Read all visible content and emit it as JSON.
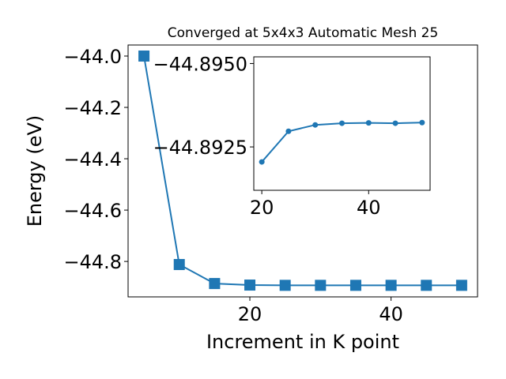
{
  "chart_data": [
    {
      "type": "line",
      "title": "Converged at 5x4x3 Automatic Mesh 25",
      "xlabel": "Increment in K point",
      "ylabel": "Energy (eV)",
      "x": [
        5,
        10,
        15,
        20,
        25,
        30,
        35,
        40,
        45,
        50
      ],
      "values": [
        -44.0,
        -44.812,
        -44.886,
        -44.892,
        -44.893,
        -44.893,
        -44.893,
        -44.893,
        -44.893,
        -44.893
      ],
      "color": "#1f77b4",
      "marker": "square",
      "xlim": [
        2.75,
        52.25
      ],
      "ylim": [
        -44.938,
        -43.957
      ],
      "xticks": [
        20,
        40
      ],
      "yticks": [
        {
          "value": -44.0,
          "label": "−44.0"
        },
        {
          "value": -44.2,
          "label": "−44.2"
        },
        {
          "value": -44.4,
          "label": "−44.4"
        },
        {
          "value": -44.6,
          "label": "−44.6"
        },
        {
          "value": -44.8,
          "label": "−44.8"
        }
      ]
    },
    {
      "type": "line",
      "x": [
        20,
        25,
        30,
        35,
        40,
        45,
        50
      ],
      "values": [
        -44.89205,
        -44.89297,
        -44.89316,
        -44.89321,
        -44.89322,
        -44.89321,
        -44.89323
      ],
      "color": "#1f77b4",
      "marker": "circle",
      "xlim": [
        18.5,
        51.5
      ],
      "ylim": [
        -44.8912,
        -44.8952
      ],
      "xticks": [
        20,
        40
      ],
      "yticks": [
        {
          "value": -44.895,
          "label": "−44.8950"
        },
        {
          "value": -44.8925,
          "label": "−44.8925"
        }
      ]
    }
  ]
}
